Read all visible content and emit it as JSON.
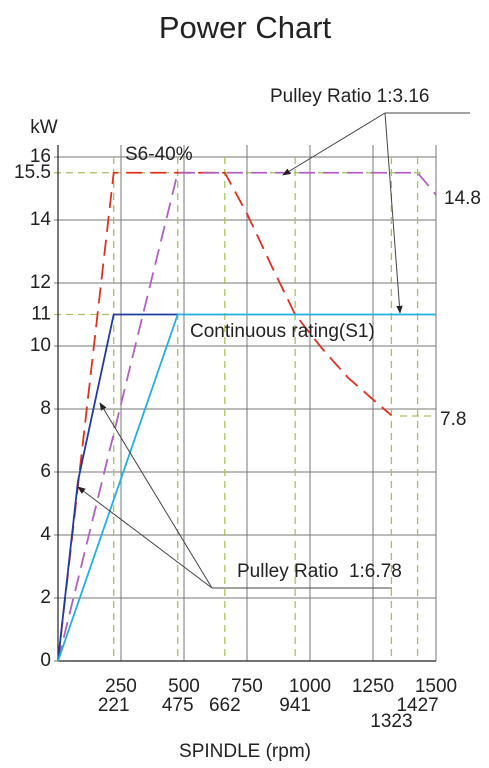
{
  "chart_data": {
    "type": "line",
    "title": "Power Chart",
    "y_label": "kW",
    "x_label": "SPINDLE (rpm)",
    "xlim": [
      0,
      1500
    ],
    "ylim": [
      0,
      16
    ],
    "xticks": [
      250,
      500,
      750,
      1000,
      1250,
      1500
    ],
    "xticks_ref": [
      221,
      475,
      662,
      941,
      1323,
      1427
    ],
    "yticks": [
      0,
      2,
      4,
      6,
      8,
      10,
      12,
      14,
      16
    ],
    "yticks_ref": [
      11,
      15.5
    ],
    "grid": true,
    "series": [
      {
        "name": "S6-40% 1:6.78",
        "color": "#e0301e",
        "dashed": true,
        "x": [
          0,
          221,
          662,
          750,
          850,
          941,
          1050,
          1150,
          1250,
          1323
        ],
        "values": [
          0,
          15.5,
          15.5,
          14.2,
          12.5,
          11,
          9.9,
          9,
          8.3,
          7.8
        ]
      },
      {
        "name": "S6-40% 1:3.16",
        "color": "#b060c0",
        "dashed": true,
        "x": [
          0,
          475,
          1427,
          1500
        ],
        "values": [
          0,
          15.5,
          15.5,
          14.8
        ]
      },
      {
        "name": "S1 1:6.78",
        "color": "#203c9c",
        "dashed": false,
        "x": [
          0,
          79,
          221,
          475
        ],
        "values": [
          0,
          5.7,
          11,
          11
        ]
      },
      {
        "name": "S1 1:3.16",
        "color": "#22b0e0",
        "dashed": false,
        "x": [
          0,
          475,
          1500
        ],
        "values": [
          0,
          11,
          11
        ]
      }
    ],
    "annotations": [
      "S6-40%",
      "Continuous rating(S1)",
      "Pulley Ratio 1:3.16",
      "Pulley Ratio  1:6.78",
      "14.8",
      "7.8"
    ]
  }
}
